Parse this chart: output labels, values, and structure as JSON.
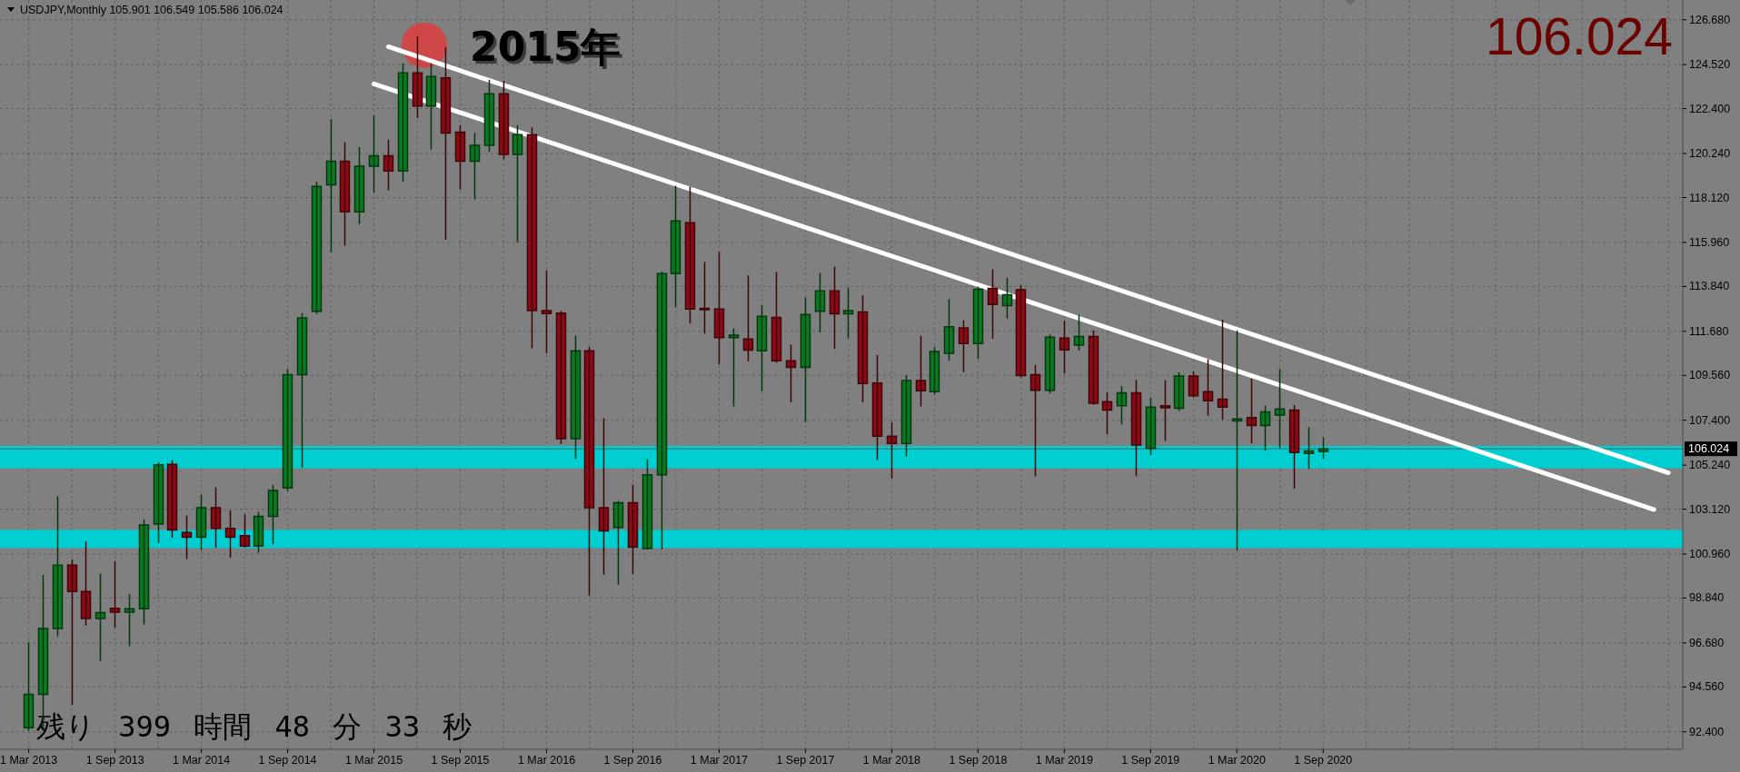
{
  "chart_data": {
    "type": "candlestick",
    "title": "USDJPY,Monthly 105.901 106.549 105.586 106.024",
    "x": [
      "2013-03",
      "2013-04",
      "2013-05",
      "2013-06",
      "2013-07",
      "2013-08",
      "2013-09",
      "2013-10",
      "2013-11",
      "2013-12",
      "2014-01",
      "2014-02",
      "2014-03",
      "2014-04",
      "2014-05",
      "2014-06",
      "2014-07",
      "2014-08",
      "2014-09",
      "2014-10",
      "2014-11",
      "2014-12",
      "2015-01",
      "2015-02",
      "2015-03",
      "2015-04",
      "2015-05",
      "2015-06",
      "2015-07",
      "2015-08",
      "2015-09",
      "2015-10",
      "2015-11",
      "2015-12",
      "2016-01",
      "2016-02",
      "2016-03",
      "2016-04",
      "2016-05",
      "2016-06",
      "2016-07",
      "2016-08",
      "2016-09",
      "2016-10",
      "2016-11",
      "2016-12",
      "2017-01",
      "2017-02",
      "2017-03",
      "2017-04",
      "2017-05",
      "2017-06",
      "2017-07",
      "2017-08",
      "2017-09",
      "2017-10",
      "2017-11",
      "2017-12",
      "2018-01",
      "2018-02",
      "2018-03",
      "2018-04",
      "2018-05",
      "2018-06",
      "2018-07",
      "2018-08",
      "2018-09",
      "2018-10",
      "2018-11",
      "2018-12",
      "2019-01",
      "2019-02",
      "2019-03",
      "2019-04",
      "2019-05",
      "2019-06",
      "2019-07",
      "2019-08",
      "2019-09",
      "2019-10",
      "2019-11",
      "2019-12",
      "2020-01",
      "2020-02",
      "2020-03",
      "2020-04",
      "2020-05",
      "2020-06",
      "2020-07",
      "2020-08",
      "2020-09"
    ],
    "ohlc": [
      [
        92.6,
        96.67,
        92.5,
        94.2
      ],
      [
        94.2,
        99.92,
        92.6,
        97.38
      ],
      [
        97.38,
        103.71,
        97.02,
        100.42
      ],
      [
        100.42,
        100.66,
        93.75,
        99.16
      ],
      [
        99.16,
        101.53,
        97.55,
        97.86
      ],
      [
        97.86,
        99.99,
        95.84,
        98.14
      ],
      [
        98.35,
        100.58,
        97.45,
        98.16
      ],
      [
        98.16,
        99.0,
        96.55,
        98.33
      ],
      [
        98.33,
        102.6,
        97.6,
        102.36
      ],
      [
        102.4,
        105.33,
        101.53,
        105.26
      ],
      [
        105.28,
        105.44,
        101.77,
        102.12
      ],
      [
        102.0,
        102.79,
        100.75,
        101.77
      ],
      [
        101.77,
        103.79,
        101.18,
        103.19
      ],
      [
        103.19,
        104.14,
        101.3,
        102.2
      ],
      [
        102.2,
        103.03,
        100.82,
        101.77
      ],
      [
        101.84,
        102.84,
        101.3,
        101.34
      ],
      [
        101.34,
        102.96,
        101.06,
        102.77
      ],
      [
        102.77,
        104.26,
        101.46,
        104.02
      ],
      [
        104.14,
        109.84,
        104.02,
        109.6
      ],
      [
        109.6,
        112.52,
        105.16,
        112.33
      ],
      [
        112.64,
        118.85,
        112.56,
        118.66
      ],
      [
        118.73,
        121.86,
        115.53,
        119.87
      ],
      [
        119.87,
        120.75,
        115.84,
        117.43
      ],
      [
        117.43,
        120.51,
        116.88,
        119.63
      ],
      [
        119.63,
        122.05,
        118.38,
        120.13
      ],
      [
        120.13,
        120.87,
        118.5,
        119.4
      ],
      [
        119.4,
        124.55,
        118.92,
        124.12
      ],
      [
        124.12,
        125.85,
        121.98,
        122.53
      ],
      [
        122.53,
        124.55,
        120.46,
        123.95
      ],
      [
        123.88,
        125.31,
        116.12,
        121.22
      ],
      [
        121.27,
        121.58,
        118.54,
        119.87
      ],
      [
        119.87,
        121.2,
        118.07,
        120.63
      ],
      [
        120.63,
        123.76,
        120.35,
        123.12
      ],
      [
        123.12,
        123.71,
        120.0,
        120.2
      ],
      [
        120.2,
        121.58,
        116.0,
        121.15
      ],
      [
        121.15,
        121.46,
        110.9,
        112.68
      ],
      [
        112.68,
        114.58,
        110.67,
        112.54
      ],
      [
        112.56,
        112.63,
        106.28,
        106.51
      ],
      [
        106.51,
        111.45,
        105.57,
        110.74
      ],
      [
        110.74,
        110.9,
        99.0,
        103.19
      ],
      [
        103.19,
        107.46,
        100.0,
        102.08
      ],
      [
        102.24,
        103.48,
        99.52,
        103.43
      ],
      [
        103.43,
        104.26,
        100.04,
        101.29
      ],
      [
        101.22,
        105.49,
        101.2,
        104.78
      ],
      [
        104.78,
        114.53,
        101.22,
        114.46
      ],
      [
        114.46,
        118.66,
        112.87,
        117.0
      ],
      [
        116.91,
        118.61,
        112.09,
        112.75
      ],
      [
        112.78,
        114.98,
        111.61,
        112.73
      ],
      [
        112.75,
        115.48,
        110.12,
        111.38
      ],
      [
        111.38,
        111.78,
        108.1,
        111.5
      ],
      [
        111.31,
        114.34,
        110.26,
        110.78
      ],
      [
        110.74,
        112.92,
        108.82,
        112.4
      ],
      [
        112.35,
        114.51,
        110.2,
        110.26
      ],
      [
        110.26,
        111.02,
        108.29,
        109.95
      ],
      [
        109.95,
        113.28,
        107.34,
        112.49
      ],
      [
        112.64,
        114.46,
        111.66,
        113.63
      ],
      [
        113.63,
        114.75,
        110.86,
        112.52
      ],
      [
        112.52,
        113.75,
        111.38,
        112.68
      ],
      [
        112.61,
        113.39,
        108.29,
        109.17
      ],
      [
        109.19,
        110.5,
        105.52,
        106.63
      ],
      [
        106.63,
        107.27,
        104.62,
        106.28
      ],
      [
        106.28,
        109.53,
        105.68,
        109.31
      ],
      [
        109.31,
        111.43,
        108.1,
        108.82
      ],
      [
        108.77,
        110.9,
        108.7,
        110.71
      ],
      [
        110.62,
        113.2,
        110.31,
        111.9
      ],
      [
        111.85,
        112.18,
        109.76,
        111.09
      ],
      [
        111.09,
        113.8,
        110.38,
        113.7
      ],
      [
        113.75,
        114.63,
        111.35,
        112.97
      ],
      [
        112.92,
        114.23,
        112.33,
        113.44
      ],
      [
        113.68,
        113.87,
        109.5,
        109.55
      ],
      [
        109.6,
        110.03,
        104.73,
        108.84
      ],
      [
        108.84,
        111.5,
        108.72,
        111.4
      ],
      [
        111.35,
        112.16,
        109.67,
        110.79
      ],
      [
        111.02,
        112.45,
        110.79,
        111.43
      ],
      [
        111.43,
        111.69,
        108.17,
        108.22
      ],
      [
        108.29,
        108.72,
        106.75,
        107.89
      ],
      [
        108.1,
        109.01,
        107.23,
        108.72
      ],
      [
        108.72,
        109.31,
        104.73,
        106.21
      ],
      [
        106.04,
        108.46,
        105.76,
        108.03
      ],
      [
        108.1,
        109.29,
        106.44,
        108.0
      ],
      [
        107.98,
        109.67,
        107.89,
        109.53
      ],
      [
        109.53,
        109.72,
        108.53,
        108.58
      ],
      [
        108.77,
        110.31,
        107.65,
        108.34
      ],
      [
        108.41,
        112.21,
        107.46,
        108.03
      ],
      [
        107.37,
        111.69,
        101.18,
        107.46
      ],
      [
        107.53,
        109.36,
        106.32,
        107.15
      ],
      [
        107.15,
        108.06,
        105.97,
        107.8
      ],
      [
        107.65,
        109.84,
        106.07,
        107.94
      ],
      [
        107.89,
        108.1,
        104.14,
        105.85
      ],
      [
        105.8,
        107.04,
        105.09,
        105.92
      ],
      [
        105.901,
        106.549,
        105.586,
        106.024
      ]
    ],
    "colors": [
      "#0a7a22",
      "#0a7a22",
      "#0a7a22",
      "#8b0a14",
      "#8b0a14",
      "#0a7a22",
      "#8b0a14",
      "#0a7a22",
      "#0a7a22",
      "#0a7a22",
      "#8b0a14",
      "#8b0a14",
      "#0a7a22",
      "#8b0a14",
      "#8b0a14",
      "#8b0a14",
      "#0a7a22",
      "#0a7a22",
      "#0a7a22",
      "#0a7a22",
      "#0a7a22",
      "#0a7a22",
      "#8b0a14",
      "#0a7a22",
      "#0a7a22",
      "#8b0a14",
      "#0a7a22",
      "#8b0a14",
      "#0a7a22",
      "#8b0a14",
      "#8b0a14",
      "#0a7a22",
      "#0a7a22",
      "#8b0a14",
      "#0a7a22",
      "#8b0a14",
      "#8b0a14",
      "#8b0a14",
      "#0a7a22",
      "#8b0a14",
      "#8b0a14",
      "#0a7a22",
      "#8b0a14",
      "#0a7a22",
      "#0a7a22",
      "#0a7a22",
      "#8b0a14",
      "#8b0a14",
      "#8b0a14",
      "#0a7a22",
      "#8b0a14",
      "#0a7a22",
      "#8b0a14",
      "#8b0a14",
      "#0a7a22",
      "#0a7a22",
      "#8b0a14",
      "#0a7a22",
      "#8b0a14",
      "#8b0a14",
      "#8b0a14",
      "#0a7a22",
      "#8b0a14",
      "#0a7a22",
      "#0a7a22",
      "#8b0a14",
      "#0a7a22",
      "#8b0a14",
      "#0a7a22",
      "#8b0a14",
      "#8b0a14",
      "#0a7a22",
      "#8b0a14",
      "#0a7a22",
      "#8b0a14",
      "#8b0a14",
      "#0a7a22",
      "#8b0a14",
      "#0a7a22",
      "#8b0a14",
      "#0a7a22",
      "#8b0a14",
      "#8b0a14",
      "#8b0a14",
      "#0a7a22",
      "#8b0a14",
      "#0a7a22",
      "#0a7a22",
      "#8b0a14",
      "#0a7a22",
      "#0a7a22"
    ],
    "series": [
      {
        "type": "line",
        "x": [
          "2015-04",
          "2022-09"
        ],
        "values": [
          125.38,
          104.87
        ],
        "color": "#ffffff"
      },
      {
        "type": "line",
        "x": [
          "2015-03",
          "2022-08"
        ],
        "values": [
          123.59,
          103.1
        ],
        "color": "#ffffff"
      }
    ],
    "xlim": [
      "2013-01",
      "2022-10"
    ],
    "ylim": [
      91.56,
      127.63
    ],
    "xticks": [
      {
        "value": "2013-03",
        "label": "1 Mar 2013"
      },
      {
        "value": "2013-06",
        "label": null
      },
      {
        "value": "2013-09",
        "label": "1 Sep 2013"
      },
      {
        "value": "2013-12",
        "label": null
      },
      {
        "value": "2014-03",
        "label": "1 Mar 2014"
      },
      {
        "value": "2014-06",
        "label": null
      },
      {
        "value": "2014-09",
        "label": "1 Sep 2014"
      },
      {
        "value": "2014-12",
        "label": null
      },
      {
        "value": "2015-03",
        "label": "1 Mar 2015"
      },
      {
        "value": "2015-06",
        "label": null
      },
      {
        "value": "2015-09",
        "label": "1 Sep 2015"
      },
      {
        "value": "2015-12",
        "label": null
      },
      {
        "value": "2016-03",
        "label": "1 Mar 2016"
      },
      {
        "value": "2016-06",
        "label": null
      },
      {
        "value": "2016-09",
        "label": "1 Sep 2016"
      },
      {
        "value": "2016-12",
        "label": null
      },
      {
        "value": "2017-03",
        "label": "1 Mar 2017"
      },
      {
        "value": "2017-06",
        "label": null
      },
      {
        "value": "2017-09",
        "label": "1 Sep 2017"
      },
      {
        "value": "2017-12",
        "label": null
      },
      {
        "value": "2018-03",
        "label": "1 Mar 2018"
      },
      {
        "value": "2018-06",
        "label": null
      },
      {
        "value": "2018-09",
        "label": "1 Sep 2018"
      },
      {
        "value": "2018-12",
        "label": null
      },
      {
        "value": "2019-03",
        "label": "1 Mar 2019"
      },
      {
        "value": "2019-06",
        "label": null
      },
      {
        "value": "2019-09",
        "label": "1 Sep 2019"
      },
      {
        "value": "2019-12",
        "label": null
      },
      {
        "value": "2020-03",
        "label": "1 Mar 2020"
      },
      {
        "value": "2020-06",
        "label": null
      },
      {
        "value": "2020-09",
        "label": "1 Sep 2020"
      },
      {
        "value": "2020-12",
        "label": null
      },
      {
        "value": "2021-03",
        "label": null
      },
      {
        "value": "2021-06",
        "label": null
      },
      {
        "value": "2021-09",
        "label": null
      },
      {
        "value": "2021-12",
        "label": null
      },
      {
        "value": "2022-03",
        "label": null
      },
      {
        "value": "2022-06",
        "label": null
      },
      {
        "value": "2022-09",
        "label": null
      }
    ],
    "yticks": [
      {
        "value": 126.68,
        "label": "126.680"
      },
      {
        "value": 124.52,
        "label": "124.520"
      },
      {
        "value": 122.4,
        "label": "122.400"
      },
      {
        "value": 120.24,
        "label": "120.240"
      },
      {
        "value": 118.12,
        "label": "118.120"
      },
      {
        "value": 115.96,
        "label": "115.960"
      },
      {
        "value": 113.84,
        "label": "113.840"
      },
      {
        "value": 111.68,
        "label": "111.680"
      },
      {
        "value": 109.56,
        "label": "109.560"
      },
      {
        "value": 107.4,
        "label": "107.400"
      },
      {
        "value": 105.24,
        "label": "105.240"
      },
      {
        "value": 103.12,
        "label": "103.120"
      },
      {
        "value": 100.96,
        "label": "100.960"
      },
      {
        "value": 98.84,
        "label": "98.840"
      },
      {
        "value": 96.68,
        "label": "96.680"
      },
      {
        "value": 94.56,
        "label": "94.560"
      },
      {
        "value": 92.4,
        "label": "92.400"
      }
    ],
    "grid": true,
    "bands": [
      {
        "axis": "y",
        "from": 105.09,
        "to": 106.16,
        "color": "#00ced1"
      },
      {
        "axis": "y",
        "from": 101.25,
        "to": 102.12,
        "color": "#00ced1"
      }
    ],
    "ref_lines": [
      {
        "axis": "y",
        "value": 106.024,
        "label": "106.024",
        "color": "#5e5e5e"
      }
    ],
    "annotations": [
      "106.024",
      {
        "text": "2015年",
        "x": "2015-06",
        "y": 125.85
      },
      "残り 399 時間 48 分 33 秒"
    ]
  }
}
